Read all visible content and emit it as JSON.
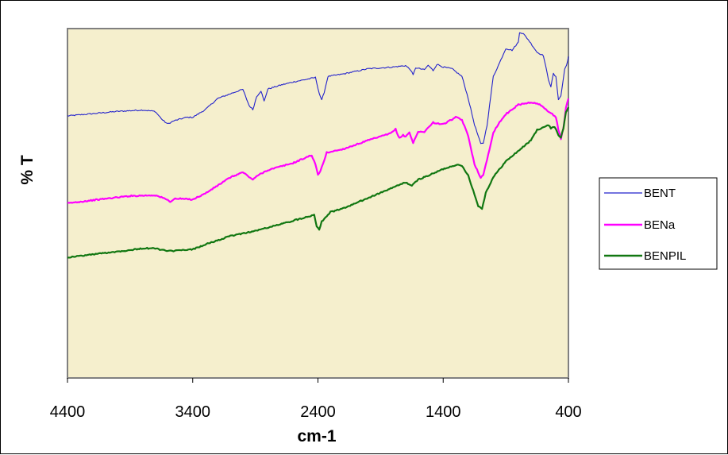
{
  "chart_data": {
    "type": "line",
    "title": "",
    "xlabel": "cm-1",
    "ylabel": "% T",
    "xlim": [
      4400,
      400
    ],
    "x_reversed": true,
    "xticks": [
      4400,
      3400,
      2400,
      1400,
      400
    ],
    "ylim": [
      0,
      100
    ],
    "grid": false,
    "legend_position": "right",
    "plot_background": "#f5efcd",
    "series": [
      {
        "name": "BENT",
        "color": "#2222cc",
        "points": [
          [
            4400,
            75.0
          ],
          [
            4000,
            76.3
          ],
          [
            3800,
            76.7
          ],
          [
            3700,
            76.3
          ],
          [
            3640,
            73.8
          ],
          [
            3600,
            72.7
          ],
          [
            3550,
            73.6
          ],
          [
            3450,
            74.6
          ],
          [
            3400,
            74.6
          ],
          [
            3300,
            76.8
          ],
          [
            3200,
            80.0
          ],
          [
            3050,
            82.0
          ],
          [
            3000,
            82.6
          ],
          [
            2950,
            78.0
          ],
          [
            2920,
            76.8
          ],
          [
            2890,
            80.5
          ],
          [
            2855,
            82.2
          ],
          [
            2830,
            79.2
          ],
          [
            2800,
            82.7
          ],
          [
            2700,
            83.8
          ],
          [
            2600,
            84.7
          ],
          [
            2420,
            86.0
          ],
          [
            2390,
            81.5
          ],
          [
            2370,
            79.5
          ],
          [
            2350,
            81.8
          ],
          [
            2320,
            86.3
          ],
          [
            2200,
            87.0
          ],
          [
            2000,
            88.5
          ],
          [
            1800,
            89.0
          ],
          [
            1700,
            89.4
          ],
          [
            1660,
            88.2
          ],
          [
            1640,
            86.7
          ],
          [
            1620,
            88.8
          ],
          [
            1550,
            88.2
          ],
          [
            1520,
            89.5
          ],
          [
            1480,
            88.0
          ],
          [
            1450,
            89.8
          ],
          [
            1400,
            89.0
          ],
          [
            1330,
            88.5
          ],
          [
            1250,
            86.3
          ],
          [
            1200,
            80.0
          ],
          [
            1150,
            72.5
          ],
          [
            1100,
            67.0
          ],
          [
            1080,
            67.2
          ],
          [
            1050,
            72.3
          ],
          [
            1000,
            86.3
          ],
          [
            950,
            90.2
          ],
          [
            900,
            94.3
          ],
          [
            850,
            93.8
          ],
          [
            800,
            96.1
          ],
          [
            790,
            99.0
          ],
          [
            760,
            98.5
          ],
          [
            720,
            96.8
          ],
          [
            650,
            93.2
          ],
          [
            600,
            92.3
          ],
          [
            560,
            85.5
          ],
          [
            540,
            83.4
          ],
          [
            520,
            87.1
          ],
          [
            500,
            86.1
          ],
          [
            480,
            79.8
          ],
          [
            460,
            80.7
          ],
          [
            430,
            88.4
          ],
          [
            415,
            89.5
          ],
          [
            400,
            92.0
          ]
        ]
      },
      {
        "name": "BENa",
        "color": "#ff00ff",
        "points": [
          [
            4400,
            50.0
          ],
          [
            4100,
            51.3
          ],
          [
            3900,
            52.1
          ],
          [
            3700,
            52.3
          ],
          [
            3620,
            51.3
          ],
          [
            3580,
            50.5
          ],
          [
            3540,
            51.3
          ],
          [
            3500,
            51.3
          ],
          [
            3400,
            51.1
          ],
          [
            3300,
            52.8
          ],
          [
            3100,
            57.4
          ],
          [
            3000,
            58.9
          ],
          [
            2960,
            57.8
          ],
          [
            2920,
            56.8
          ],
          [
            2870,
            58.2
          ],
          [
            2800,
            59.5
          ],
          [
            2600,
            61.5
          ],
          [
            2450,
            63.8
          ],
          [
            2420,
            61.0
          ],
          [
            2400,
            58.2
          ],
          [
            2380,
            59.2
          ],
          [
            2330,
            64.5
          ],
          [
            2200,
            65.5
          ],
          [
            2000,
            68.0
          ],
          [
            1820,
            70.0
          ],
          [
            1780,
            71.2
          ],
          [
            1750,
            68.6
          ],
          [
            1720,
            69.5
          ],
          [
            1700,
            69.1
          ],
          [
            1670,
            70.3
          ],
          [
            1640,
            67.3
          ],
          [
            1600,
            70.4
          ],
          [
            1550,
            70.5
          ],
          [
            1480,
            73.1
          ],
          [
            1400,
            72.6
          ],
          [
            1300,
            74.6
          ],
          [
            1250,
            73.9
          ],
          [
            1200,
            69.2
          ],
          [
            1150,
            61.2
          ],
          [
            1100,
            57.3
          ],
          [
            1080,
            58.0
          ],
          [
            1030,
            65.5
          ],
          [
            1000,
            70.3
          ],
          [
            950,
            73.2
          ],
          [
            900,
            75.5
          ],
          [
            800,
            78.2
          ],
          [
            700,
            78.9
          ],
          [
            630,
            78.3
          ],
          [
            600,
            77.4
          ],
          [
            540,
            75.8
          ],
          [
            500,
            74.7
          ],
          [
            480,
            71.0
          ],
          [
            460,
            68.5
          ],
          [
            440,
            71.4
          ],
          [
            420,
            77.4
          ],
          [
            400,
            80.0
          ]
        ]
      },
      {
        "name": "BENPIL",
        "color": "#117711",
        "points": [
          [
            4400,
            34.5
          ],
          [
            4100,
            35.8
          ],
          [
            3900,
            36.6
          ],
          [
            3800,
            37.1
          ],
          [
            3700,
            37.1
          ],
          [
            3600,
            36.3
          ],
          [
            3500,
            36.5
          ],
          [
            3400,
            36.8
          ],
          [
            3300,
            38.2
          ],
          [
            3100,
            40.6
          ],
          [
            3000,
            41.4
          ],
          [
            2900,
            42.1
          ],
          [
            2700,
            44.0
          ],
          [
            2600,
            45.0
          ],
          [
            2430,
            46.7
          ],
          [
            2410,
            43.5
          ],
          [
            2390,
            42.5
          ],
          [
            2370,
            44.8
          ],
          [
            2300,
            47.5
          ],
          [
            2200,
            48.5
          ],
          [
            2000,
            51.5
          ],
          [
            1800,
            54.5
          ],
          [
            1700,
            56.0
          ],
          [
            1650,
            55.0
          ],
          [
            1600,
            56.8
          ],
          [
            1500,
            58.2
          ],
          [
            1400,
            59.8
          ],
          [
            1300,
            61.0
          ],
          [
            1250,
            60.7
          ],
          [
            1200,
            58.0
          ],
          [
            1150,
            52.5
          ],
          [
            1120,
            49.2
          ],
          [
            1090,
            48.5
          ],
          [
            1060,
            53.0
          ],
          [
            1000,
            57.5
          ],
          [
            900,
            62.0
          ],
          [
            800,
            65.0
          ],
          [
            700,
            68.0
          ],
          [
            650,
            71.0
          ],
          [
            600,
            71.8
          ],
          [
            560,
            72.3
          ],
          [
            540,
            71.5
          ],
          [
            520,
            72.0
          ],
          [
            500,
            71.3
          ],
          [
            480,
            69.5
          ],
          [
            460,
            68.8
          ],
          [
            440,
            71.5
          ],
          [
            420,
            76.0
          ],
          [
            400,
            77.5
          ]
        ]
      }
    ]
  }
}
